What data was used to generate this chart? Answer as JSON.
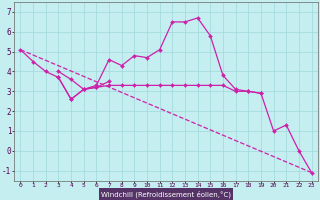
{
  "xlabel": "Windchill (Refroidissement éolien,°C)",
  "xlim": [
    -0.5,
    23.5
  ],
  "ylim": [
    -1.5,
    7.5
  ],
  "xticks": [
    0,
    1,
    2,
    3,
    4,
    5,
    6,
    7,
    8,
    9,
    10,
    11,
    12,
    13,
    14,
    15,
    16,
    17,
    18,
    19,
    20,
    21,
    22,
    23
  ],
  "yticks": [
    -1,
    0,
    1,
    2,
    3,
    4,
    5,
    6,
    7
  ],
  "background_color": "#c5eef0",
  "grid_color": "#9fd8da",
  "line_color": "#cc22aa",
  "axis_label_bg": "#6633aa",
  "line1": {
    "x": [
      0,
      1,
      2,
      3,
      4,
      5,
      6,
      7,
      8,
      9,
      10,
      11,
      12,
      13,
      14,
      15,
      16,
      17,
      18,
      19
    ],
    "y": [
      5.1,
      4.5,
      4.0,
      3.7,
      2.6,
      3.1,
      3.3,
      4.6,
      4.3,
      4.8,
      4.7,
      5.1,
      6.5,
      6.5,
      6.7,
      5.8,
      3.8,
      3.1,
      3.0,
      2.9
    ]
  },
  "line2": {
    "x": [
      3,
      4,
      5,
      6,
      7,
      8,
      9,
      10,
      11,
      12,
      13,
      14,
      15,
      16,
      17,
      18,
      19,
      20,
      21,
      22,
      23
    ],
    "y": [
      4.0,
      3.6,
      3.1,
      3.2,
      3.3,
      3.3,
      3.3,
      3.3,
      3.3,
      3.3,
      3.3,
      3.3,
      3.3,
      3.3,
      3.0,
      3.0,
      2.9,
      1.0,
      1.3,
      0.0,
      -1.1
    ]
  },
  "line3": {
    "x": [
      3,
      4,
      5,
      6,
      7
    ],
    "y": [
      3.7,
      2.6,
      3.1,
      3.2,
      3.5
    ]
  },
  "line4": {
    "x": [
      0,
      23
    ],
    "y": [
      5.1,
      -1.1
    ]
  }
}
